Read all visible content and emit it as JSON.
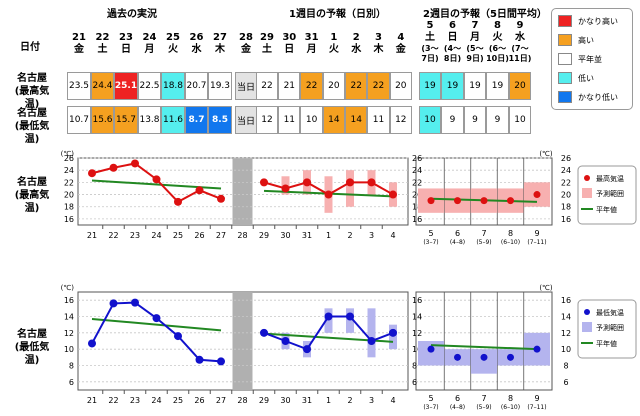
{
  "headers": {
    "date_label": "日付",
    "past": "過去の実況",
    "week1": "1週目の予報（日別）",
    "week2": "2週目の予報（5日間平均）"
  },
  "days": [
    {
      "d": "21",
      "w": "金"
    },
    {
      "d": "22",
      "w": "土"
    },
    {
      "d": "23",
      "w": "日"
    },
    {
      "d": "24",
      "w": "月"
    },
    {
      "d": "25",
      "w": "火"
    },
    {
      "d": "26",
      "w": "水"
    },
    {
      "d": "27",
      "w": "木"
    },
    {
      "d": "28",
      "w": "金"
    },
    {
      "d": "29",
      "w": "土"
    },
    {
      "d": "30",
      "w": "日"
    },
    {
      "d": "31",
      "w": "月"
    },
    {
      "d": "1",
      "w": "火"
    },
    {
      "d": "2",
      "w": "水"
    },
    {
      "d": "3",
      "w": "木"
    },
    {
      "d": "4",
      "w": "金"
    }
  ],
  "week2_days": [
    {
      "d": "5",
      "w": "土",
      "r1": "(3～",
      "r2": "7日)"
    },
    {
      "d": "6",
      "w": "日",
      "r1": "(4～",
      "r2": "8日)"
    },
    {
      "d": "7",
      "w": "月",
      "r1": "(5～",
      "r2": "9日)"
    },
    {
      "d": "8",
      "w": "火",
      "r1": "(6～",
      "r2": "10日)"
    },
    {
      "d": "9",
      "w": "水",
      "r1": "(7～",
      "r2": "11日)"
    }
  ],
  "rows": {
    "max_label": [
      "名古屋",
      "(最高気温)"
    ],
    "min_label": [
      "名古屋",
      "(最低気温)"
    ],
    "max_values": [
      "23.5",
      "24.4",
      "25.1",
      "22.5",
      "18.8",
      "20.7",
      "19.3",
      "当日",
      "22",
      "21",
      "22",
      "20",
      "22",
      "22",
      "20"
    ],
    "min_values": [
      "10.7",
      "15.6",
      "15.7",
      "13.8",
      "11.6",
      "8.7",
      "8.5",
      "当日",
      "12",
      "11",
      "10",
      "14",
      "14",
      "11",
      "12"
    ],
    "max_week2": [
      "19",
      "19",
      "19",
      "19",
      "20"
    ],
    "min_week2": [
      "10",
      "9",
      "9",
      "9",
      "10"
    ],
    "max_classes": [
      "n",
      "o",
      "r",
      "n",
      "c",
      "n",
      "n",
      "g",
      "n",
      "n",
      "o",
      "n",
      "o",
      "o",
      "n"
    ],
    "min_classes": [
      "n",
      "o",
      "o",
      "n",
      "c",
      "b",
      "b",
      "g",
      "n",
      "n",
      "n",
      "o",
      "o",
      "n",
      "n"
    ],
    "max_w2_classes": [
      "c",
      "c",
      "n",
      "n",
      "o"
    ],
    "min_w2_classes": [
      "c",
      "n",
      "n",
      "n",
      "n"
    ]
  },
  "legend": {
    "items": [
      {
        "label": "かなり高い",
        "color": "#ee2222"
      },
      {
        "label": "高い",
        "color": "#f5a020"
      },
      {
        "label": "平年並",
        "color": "#ffffff"
      },
      {
        "label": "低い",
        "color": "#55eeee"
      },
      {
        "label": "かなり低い",
        "color": "#1177ee"
      }
    ]
  },
  "colors": {
    "n": "#ffffff",
    "o": "#f5a020",
    "r": "#ee2222",
    "c": "#55eeee",
    "b": "#1177ee",
    "g": "#e3e3e3"
  },
  "chart_max": {
    "title_label": [
      "名古屋",
      "(最高気温)"
    ],
    "unit": "(℃)",
    "ylim": [
      15,
      26
    ],
    "ticks": [
      16,
      18,
      20,
      22,
      24,
      26
    ],
    "x_labels_1": [
      "21",
      "22",
      "23",
      "24",
      "25",
      "26",
      "27",
      "28",
      "29",
      "30",
      "31",
      "1",
      "2",
      "3",
      "4"
    ],
    "x_labels_2": [
      "5",
      "6",
      "7",
      "8",
      "9"
    ],
    "x_sub_2": [
      "(3–7)",
      "(4–8)",
      "(5–9)",
      "(6–10)",
      "(7–11)"
    ],
    "legend": [
      "最高気温",
      "予測範囲",
      "平年値"
    ]
  },
  "chart_min": {
    "title_label": [
      "名古屋",
      "(最低気温)"
    ],
    "unit": "(℃)",
    "ylim": [
      5,
      17
    ],
    "ticks": [
      6,
      8,
      10,
      12,
      14,
      16
    ],
    "x_labels_1": [
      "21",
      "22",
      "23",
      "24",
      "25",
      "26",
      "27",
      "28",
      "29",
      "30",
      "31",
      "1",
      "2",
      "3",
      "4"
    ],
    "x_labels_2": [
      "5",
      "6",
      "7",
      "8",
      "9"
    ],
    "x_sub_2": [
      "(3–7)",
      "(4–8)",
      "(5–9)",
      "(6–10)",
      "(7–11)"
    ],
    "legend": [
      "最低気温",
      "予測範囲",
      "平年値"
    ]
  },
  "chart_data": [
    {
      "type": "line",
      "title": "",
      "x": [
        "21",
        "22",
        "23",
        "24",
        "25",
        "26",
        "27",
        "28",
        "29",
        "30",
        "31",
        "1",
        "2",
        "3",
        "4",
        "5",
        "6",
        "7",
        "8",
        "9"
      ],
      "ylabel": "(℃)",
      "ylim": [
        15,
        26
      ],
      "series": [
        {
          "name": "最高気温",
          "observed": [
            23.5,
            24.4,
            25.1,
            22.5,
            18.8,
            20.7,
            19.3
          ],
          "forecast": [
            22,
            21,
            22,
            20,
            22,
            22,
            20
          ],
          "week2": [
            19,
            19,
            19,
            19,
            20
          ]
        },
        {
          "name": "予測範囲",
          "forecast_range": [
            [
              null,
              null
            ],
            [
              20,
              23
            ],
            [
              20,
              24
            ],
            [
              17,
              23
            ],
            [
              18,
              24
            ],
            [
              20,
              24
            ],
            [
              18,
              22
            ]
          ],
          "week2_range": [
            [
              17,
              21
            ],
            [
              17,
              21
            ],
            [
              17,
              21
            ],
            [
              17,
              21
            ],
            [
              18,
              22
            ]
          ]
        },
        {
          "name": "平年値",
          "observed_start": 22.3,
          "observed_end": 21.0,
          "forecast_start": 20.6,
          "forecast_end": 19.7,
          "week2_start": 19.3,
          "week2_end": 18.8
        }
      ]
    },
    {
      "type": "line",
      "title": "",
      "x": [
        "21",
        "22",
        "23",
        "24",
        "25",
        "26",
        "27",
        "28",
        "29",
        "30",
        "31",
        "1",
        "2",
        "3",
        "4",
        "5",
        "6",
        "7",
        "8",
        "9"
      ],
      "ylabel": "(℃)",
      "ylim": [
        5,
        17
      ],
      "series": [
        {
          "name": "最低気温",
          "observed": [
            10.7,
            15.6,
            15.7,
            13.8,
            11.6,
            8.7,
            8.5
          ],
          "forecast": [
            12,
            11,
            10,
            14,
            14,
            11,
            12
          ],
          "week2": [
            10,
            9,
            9,
            9,
            10
          ]
        },
        {
          "name": "予測範囲",
          "forecast_range": [
            [
              null,
              null
            ],
            [
              10,
              12
            ],
            [
              9,
              11
            ],
            [
              12,
              15
            ],
            [
              12,
              15
            ],
            [
              9,
              15
            ],
            [
              10,
              13
            ]
          ],
          "week2_range": [
            [
              8,
              11
            ],
            [
              8,
              10
            ],
            [
              7,
              10
            ],
            [
              8,
              10
            ],
            [
              8,
              12
            ]
          ]
        },
        {
          "name": "平年値",
          "observed_start": 13.7,
          "observed_end": 12.3,
          "forecast_start": 11.9,
          "forecast_end": 10.9,
          "week2_start": 10.5,
          "week2_end": 10.0
        }
      ]
    }
  ]
}
